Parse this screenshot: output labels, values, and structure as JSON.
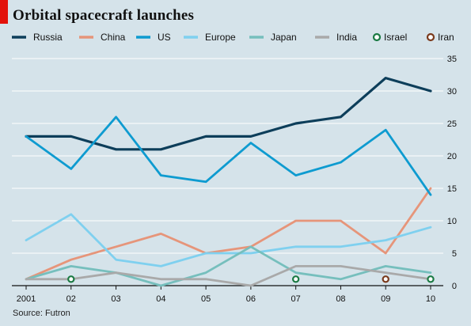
{
  "chart_data": {
    "type": "line",
    "title": "Orbital spacecraft launches",
    "source": "Source: Futron",
    "x": [
      "2001",
      "02",
      "03",
      "04",
      "05",
      "06",
      "07",
      "08",
      "09",
      "10"
    ],
    "ylim": [
      0,
      35
    ],
    "yticks": [
      0,
      5,
      10,
      15,
      20,
      25,
      30,
      35
    ],
    "y_axis_side": "right",
    "grid": true,
    "legend_position": "top",
    "series": [
      {
        "name": "Russia",
        "color": "#0d3e5a",
        "style": "line",
        "values": [
          23,
          23,
          21,
          21,
          23,
          23,
          25,
          26,
          32,
          30
        ]
      },
      {
        "name": "China",
        "color": "#e6957a",
        "style": "line",
        "values": [
          1,
          4,
          6,
          8,
          5,
          6,
          10,
          10,
          5,
          15
        ]
      },
      {
        "name": "US",
        "color": "#0e9bd0",
        "style": "line",
        "values": [
          23,
          18,
          26,
          17,
          16,
          22,
          17,
          19,
          24,
          14
        ]
      },
      {
        "name": "Europe",
        "color": "#7fd0ef",
        "style": "line",
        "values": [
          7,
          11,
          4,
          3,
          5,
          5,
          6,
          6,
          7,
          9
        ]
      },
      {
        "name": "Japan",
        "color": "#76bfbd",
        "style": "line",
        "values": [
          1,
          3,
          2,
          0,
          2,
          6,
          2,
          1,
          3,
          2
        ]
      },
      {
        "name": "India",
        "color": "#a9a9a9",
        "style": "line",
        "values": [
          1,
          1,
          2,
          1,
          1,
          0,
          3,
          3,
          2,
          1
        ]
      },
      {
        "name": "Israel",
        "color": "#1b7a43",
        "style": "marker",
        "points": [
          {
            "x": "02",
            "y": 1
          },
          {
            "x": "07",
            "y": 1
          },
          {
            "x": "10",
            "y": 1
          }
        ]
      },
      {
        "name": "Iran",
        "color": "#7a3a1c",
        "style": "marker",
        "points": [
          {
            "x": "09",
            "y": 1
          }
        ]
      }
    ]
  }
}
